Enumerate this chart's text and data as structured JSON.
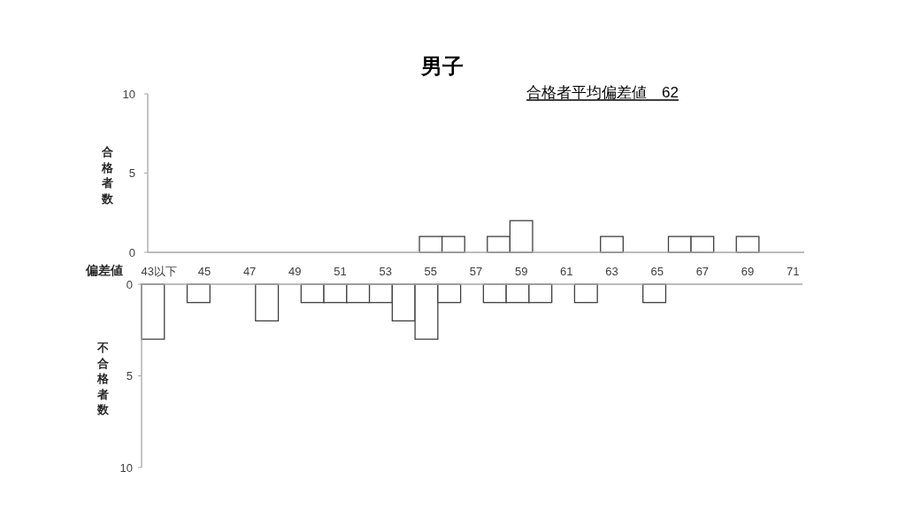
{
  "chart_data": [
    {
      "type": "bar",
      "title": "男子",
      "annotations": [
        "合格者平均偏差値　62"
      ],
      "xlabel": "偏差値",
      "ylabel": "合格者数",
      "categories": [
        "43以下",
        null,
        "45",
        null,
        "47",
        null,
        "49",
        null,
        "51",
        null,
        "53",
        null,
        "55",
        null,
        "57",
        null,
        "59",
        null,
        "61",
        null,
        "63",
        null,
        "65",
        null,
        "67",
        null,
        "69",
        null,
        "71"
      ],
      "values": [
        0,
        0,
        0,
        0,
        0,
        0,
        0,
        0,
        0,
        0,
        0,
        0,
        1,
        1,
        0,
        1,
        2,
        0,
        0,
        0,
        1,
        0,
        0,
        1,
        1,
        0,
        1,
        0,
        0
      ],
      "color": "#ffffff",
      "ylim": [
        0,
        10
      ],
      "yticks": [
        0,
        5,
        10
      ]
    },
    {
      "type": "bar",
      "ylabel": "不合格者数",
      "categories": [
        null,
        null,
        null,
        null,
        null,
        null,
        null,
        null,
        null,
        null,
        null,
        null,
        null,
        null,
        null,
        null,
        null,
        null,
        null,
        null,
        null,
        null,
        null,
        null,
        null,
        null,
        null,
        null,
        null
      ],
      "values": [
        3,
        0,
        1,
        0,
        0,
        2,
        0,
        1,
        1,
        1,
        1,
        2,
        3,
        1,
        0,
        1,
        1,
        1,
        0,
        1,
        0,
        0,
        1,
        0,
        0,
        0,
        0,
        0,
        0
      ],
      "color": "#ffffff",
      "ylim": [
        10,
        0
      ],
      "yticks": [
        0,
        5,
        10
      ]
    }
  ]
}
